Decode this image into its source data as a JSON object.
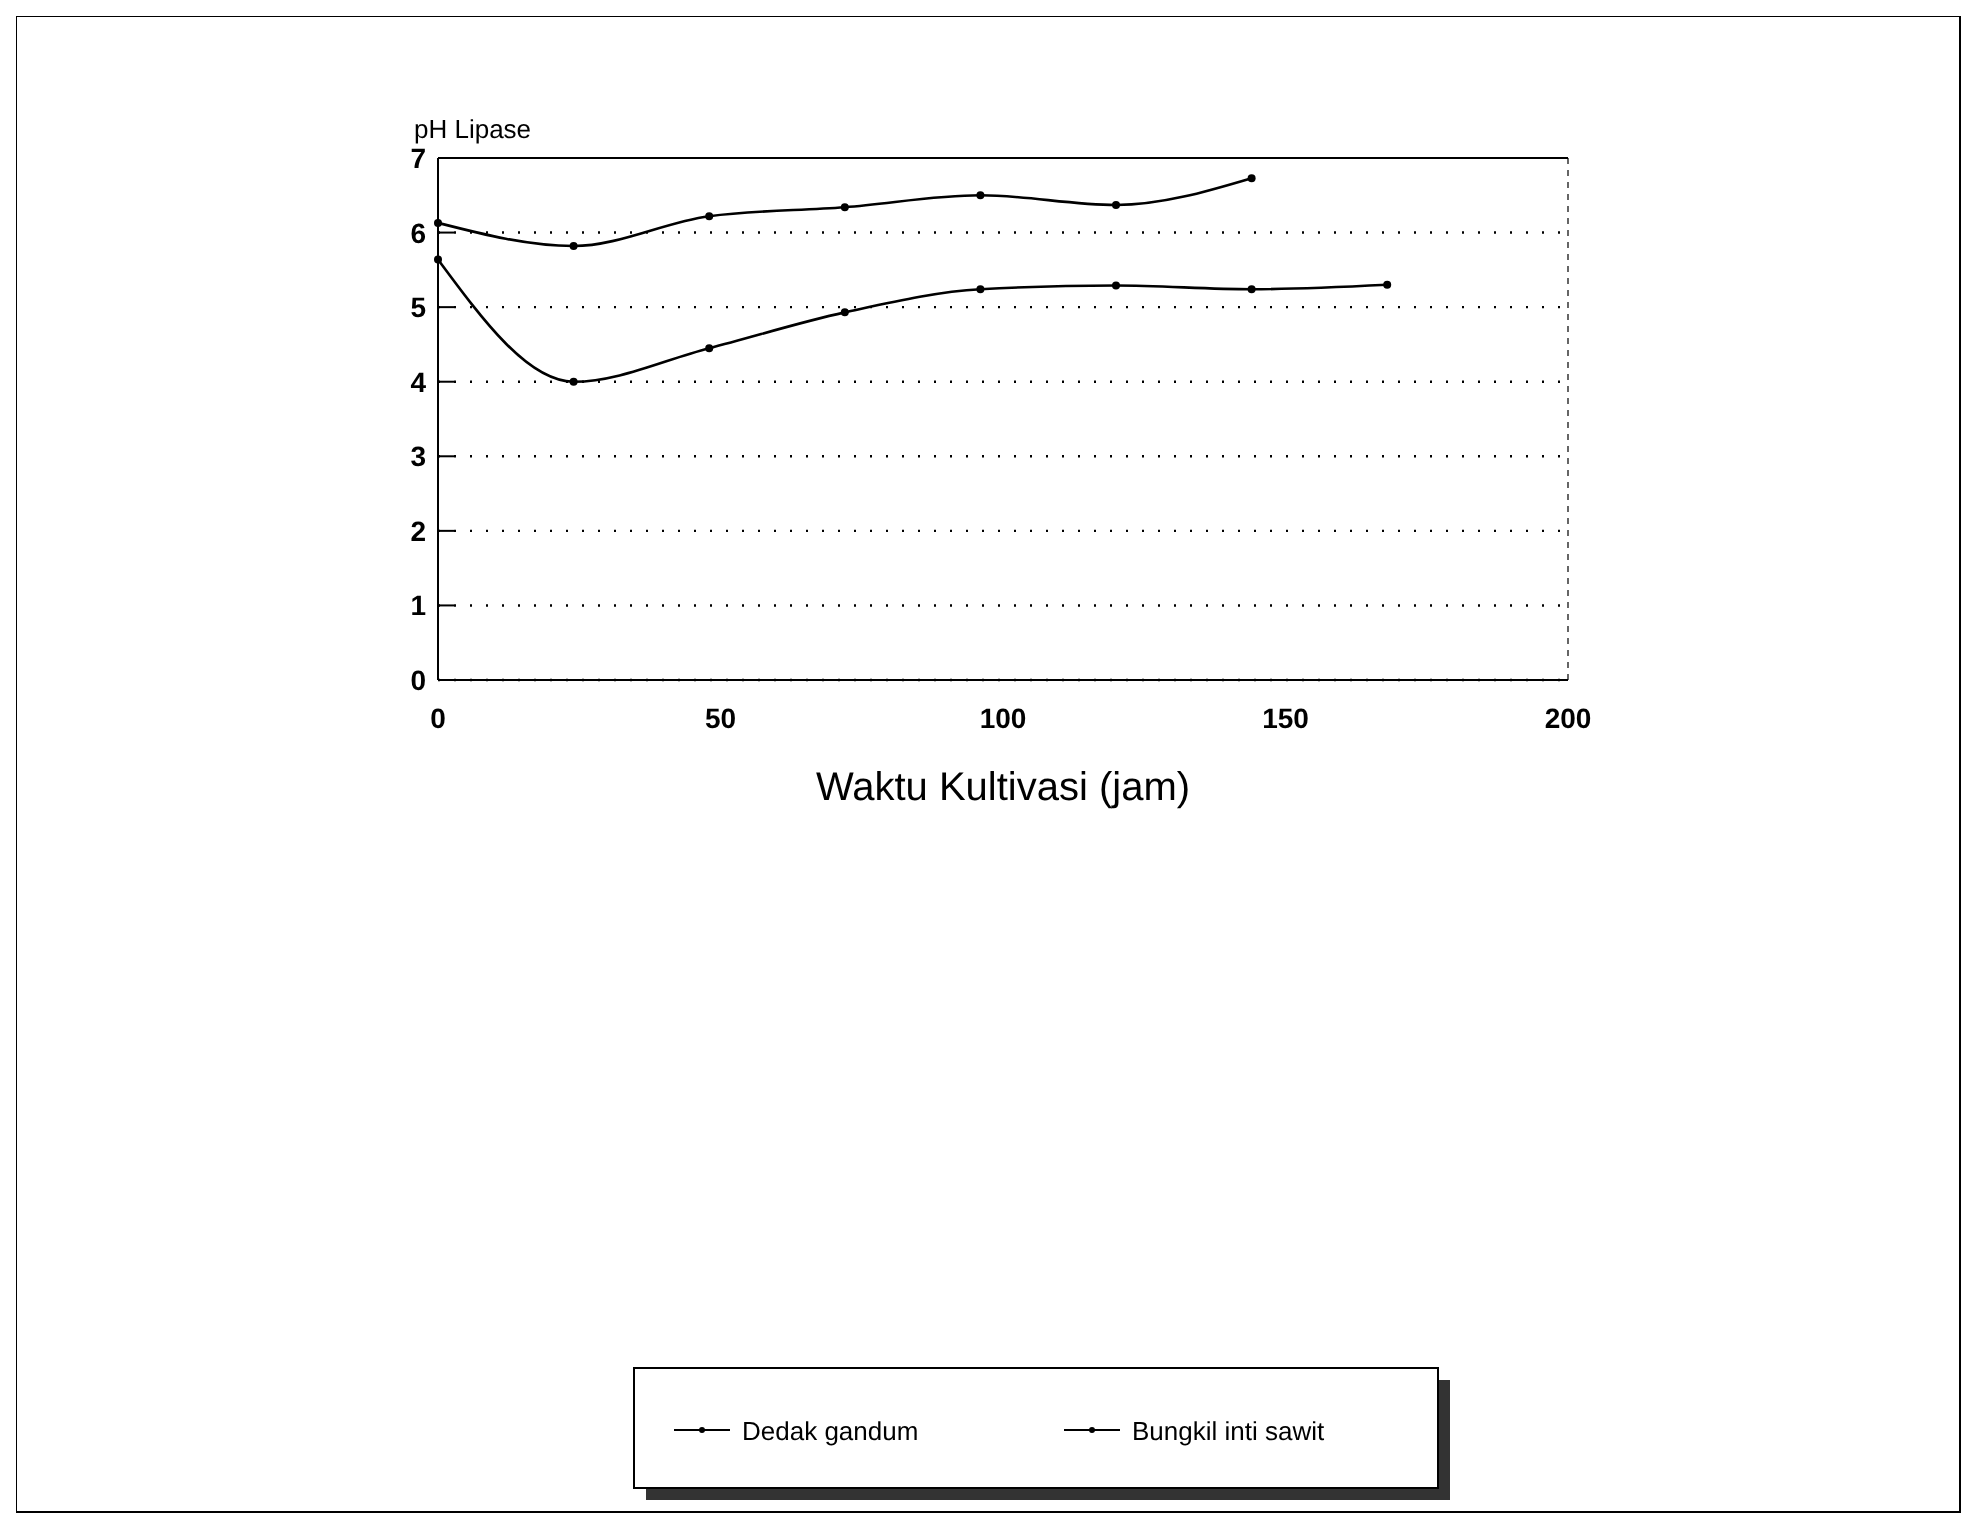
{
  "chart_data": {
    "type": "line",
    "ylabel": "pH Lipase",
    "xlabel": "Waktu Kultivasi (jam)",
    "xlim": [
      0,
      200
    ],
    "xticks": [
      0,
      50,
      100,
      150,
      200
    ],
    "ylim": [
      0,
      7
    ],
    "yticks": [
      0,
      1,
      2,
      3,
      4,
      5,
      6,
      7
    ],
    "grid": "y",
    "legend": "bottom",
    "marker": "circle",
    "line_style": "solid",
    "series": [
      {
        "name": "Dedak gandum",
        "color": "#000000",
        "x": [
          0,
          24,
          48,
          72,
          96,
          120,
          144
        ],
        "values": [
          6.13,
          5.82,
          6.22,
          6.34,
          6.5,
          6.37,
          6.73
        ]
      },
      {
        "name": "Bungkil inti sawit",
        "color": "#000000",
        "x": [
          0,
          24,
          48,
          72,
          96,
          120,
          144,
          168
        ],
        "values": [
          5.64,
          4.0,
          4.45,
          4.93,
          5.24,
          5.29,
          5.24,
          5.3
        ]
      }
    ]
  }
}
